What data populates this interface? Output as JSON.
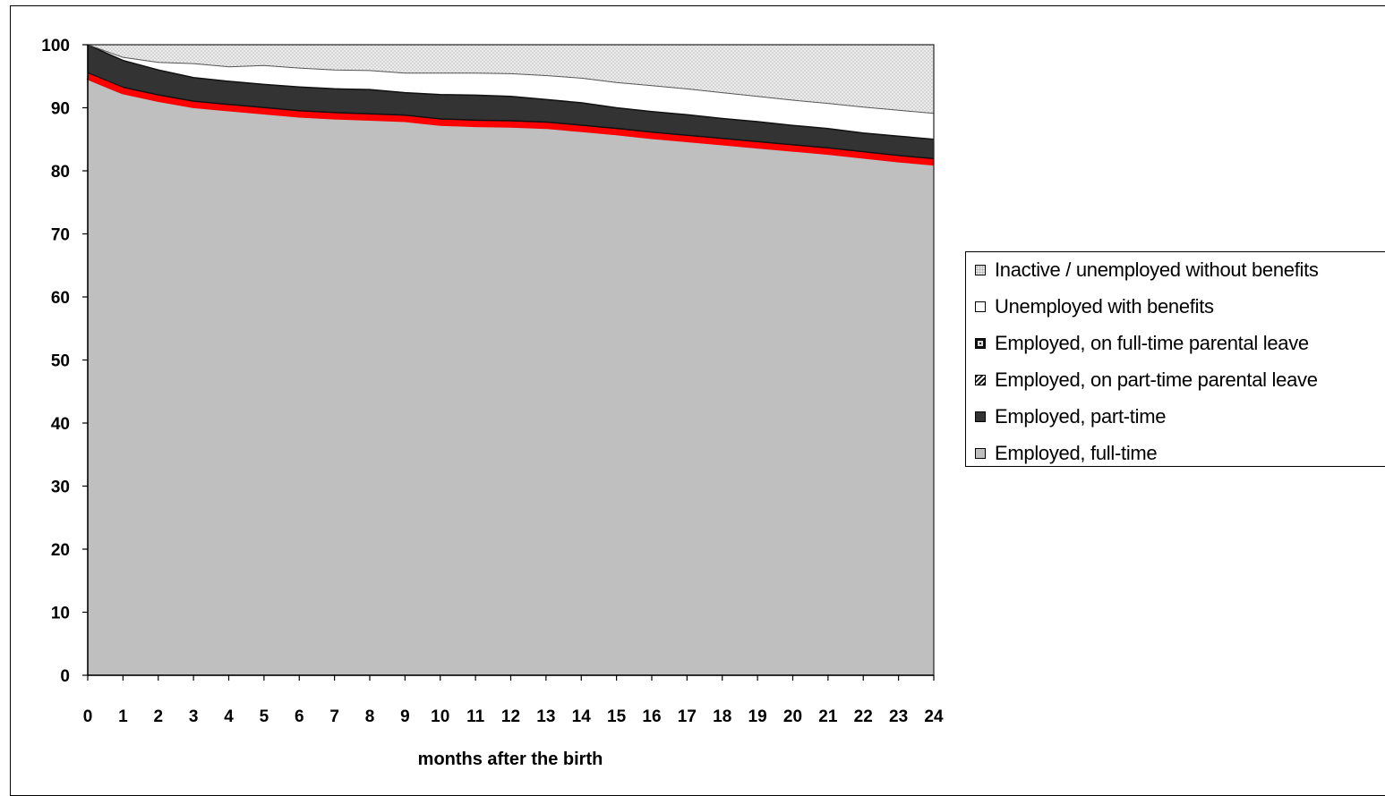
{
  "chart_data": {
    "type": "area",
    "stacked": true,
    "title": "",
    "xlabel": "months after the birth",
    "ylabel": "",
    "x": [
      0,
      1,
      2,
      3,
      4,
      5,
      6,
      7,
      8,
      9,
      10,
      11,
      12,
      13,
      14,
      15,
      16,
      17,
      18,
      19,
      20,
      21,
      22,
      23,
      24
    ],
    "ylim": [
      0,
      100
    ],
    "yticks": [
      0,
      10,
      20,
      30,
      40,
      50,
      60,
      70,
      80,
      90,
      100
    ],
    "xlim": [
      0,
      24
    ],
    "series": [
      {
        "name": "Employed, full-time",
        "color": "#bfbfbf",
        "values": [
          95.5,
          93.2,
          92.0,
          91.0,
          90.5,
          90.0,
          89.5,
          89.2,
          89.0,
          88.8,
          88.2,
          88.0,
          87.9,
          87.7,
          87.2,
          86.7,
          86.1,
          85.6,
          85.1,
          84.6,
          84.1,
          83.6,
          83.0,
          82.4,
          81.9
        ]
      },
      {
        "name": "Employed, part-time",
        "color": "#333333",
        "values": [
          4.5,
          4.3,
          4.0,
          3.8,
          3.7,
          3.7,
          3.8,
          3.8,
          3.9,
          3.6,
          3.9,
          4.0,
          3.9,
          3.6,
          3.6,
          3.3,
          3.3,
          3.3,
          3.2,
          3.2,
          3.1,
          3.1,
          3.0,
          3.1,
          3.1
        ]
      },
      {
        "name": "Employed, on part-time parental leave",
        "color": "#111111",
        "values": [
          0,
          0,
          0,
          0,
          0,
          0,
          0,
          0,
          0,
          0,
          0,
          0,
          0,
          0,
          0,
          0,
          0,
          0,
          0,
          0,
          0,
          0,
          0,
          0,
          0
        ]
      },
      {
        "name": "Employed, on full-time parental leave",
        "color": "#111111",
        "values": [
          0,
          0,
          0,
          0,
          0,
          0,
          0,
          0,
          0,
          0,
          0,
          0,
          0,
          0,
          0,
          0,
          0,
          0,
          0,
          0,
          0,
          0,
          0,
          0,
          0
        ]
      },
      {
        "name": "Unemployed with benefits",
        "color": "#ffffff",
        "values": [
          0,
          0.5,
          1.2,
          2.2,
          2.3,
          3.0,
          3.0,
          3.0,
          3.0,
          3.1,
          3.4,
          3.5,
          3.6,
          3.8,
          3.9,
          4.0,
          4.1,
          4.1,
          4.1,
          4.0,
          4.0,
          4.0,
          4.1,
          4.1,
          4.1
        ]
      },
      {
        "name": "Inactive / unemployed without benefits",
        "color": "#e6e6e6",
        "values": [
          0,
          2.0,
          2.8,
          3.0,
          3.5,
          3.3,
          3.7,
          4.0,
          4.1,
          4.5,
          4.5,
          4.5,
          4.6,
          4.9,
          5.3,
          6.0,
          6.5,
          7.0,
          7.6,
          8.2,
          8.8,
          9.3,
          9.9,
          10.4,
          10.9
        ]
      }
    ],
    "highlight_line": {
      "color": "#ff0000"
    },
    "grid": false,
    "legend_position": "right"
  },
  "legend": {
    "items": [
      {
        "label": "Inactive / unemployed without benefits"
      },
      {
        "label": "Unemployed with benefits"
      },
      {
        "label": "Employed, on full-time parental leave"
      },
      {
        "label": "Employed, on part-time parental leave"
      },
      {
        "label": "Employed, part-time"
      },
      {
        "label": "Employed, full-time"
      }
    ]
  }
}
